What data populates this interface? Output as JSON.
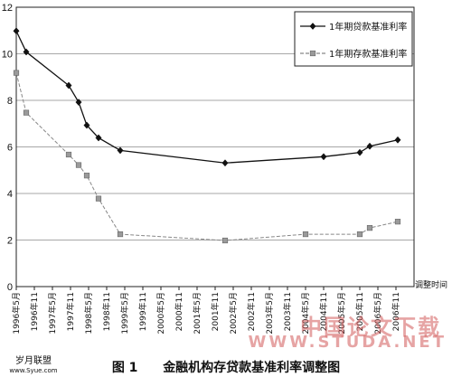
{
  "chart_data": {
    "type": "line",
    "title": "",
    "xlabel": "调整时间",
    "ylabel": "",
    "ylim": [
      0,
      12
    ],
    "yticks": [
      0,
      2,
      4,
      6,
      8,
      10,
      12
    ],
    "grid": true,
    "legend_position": "top-right",
    "categories": [
      "1996年5月",
      "1996年11",
      "1997年5月",
      "1997年11",
      "1998年5月",
      "1998年11",
      "1999年5月",
      "1999年11",
      "2000年5月",
      "2000年11",
      "2001年5月",
      "2001年11",
      "2002年5月",
      "2002年11",
      "2003年5月",
      "2003年11",
      "2004年5月",
      "2004年11",
      "2005年5月",
      "2005年11",
      "2006年5月",
      "2006年11"
    ],
    "series": [
      {
        "name": "1年期贷款基准利率",
        "color": "#111111",
        "marker": "diamond",
        "dash": "solid",
        "x": [
          0.0,
          0.55,
          2.9,
          3.45,
          3.9,
          4.55,
          5.75,
          11.55,
          17.0,
          19.0,
          19.55,
          21.1
        ],
        "y": [
          10.98,
          10.08,
          8.64,
          7.92,
          6.93,
          6.39,
          5.85,
          5.31,
          5.58,
          5.76,
          6.03,
          6.3
        ]
      },
      {
        "name": "1年期存款基准利率",
        "color": "#888888",
        "marker": "square",
        "dash": "dashed",
        "x": [
          0.0,
          0.55,
          2.9,
          3.45,
          3.9,
          4.55,
          5.75,
          11.55,
          16.0,
          19.0,
          19.55,
          21.1
        ],
        "y": [
          9.18,
          7.47,
          5.67,
          5.22,
          4.77,
          3.78,
          2.25,
          1.98,
          2.25,
          2.25,
          2.52,
          2.79
        ]
      }
    ]
  },
  "caption": {
    "figure_label": "图 1",
    "text": "金融机构存贷款基准利率调整图"
  },
  "logo": {
    "line1": "岁月联盟",
    "line2": "www.Syue.com"
  },
  "watermark": {
    "line1": "中国论文下载",
    "line2": "WWW.STUDA.NET"
  }
}
